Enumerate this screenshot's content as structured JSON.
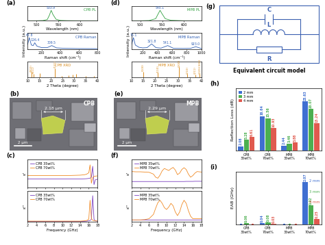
{
  "chart_data": [
    {
      "type": "line",
      "title": "(a)",
      "x": [
        480,
        500,
        515,
        525,
        530,
        533.9,
        538,
        545,
        555,
        570,
        600,
        640
      ],
      "series": [
        {
          "name": "CPB PL",
          "color": "#2e9e3e",
          "values": [
            0.01,
            0.01,
            0.03,
            0.12,
            0.55,
            1.0,
            0.6,
            0.15,
            0.04,
            0.02,
            0.01,
            0.01
          ]
        }
      ],
      "xlabel": "Wavelength (nm)",
      "xlim": [
        480,
        640
      ],
      "xticks": [
        500,
        550,
        600
      ],
      "ylim": [
        0,
        1.4
      ],
      "tick_labels": "x",
      "annotations": [
        {
          "text": "533.9",
          "x": 533.9,
          "y": 1.0
        }
      ]
    },
    {
      "type": "line",
      "x": [
        50,
        67.8,
        90,
        110,
        126.4,
        150,
        200,
        260,
        309.5,
        360,
        450,
        600,
        800
      ],
      "series": [
        {
          "name": "CPB Raman",
          "color": "#2f5fb3",
          "values": [
            0.4,
            1.0,
            0.35,
            0.3,
            0.55,
            0.25,
            0.12,
            0.12,
            0.3,
            0.1,
            0.06,
            0.04,
            0.03
          ]
        }
      ],
      "xlabel": "Raman shift (cm⁻¹)",
      "ylabel": "Intensity (a.u.)",
      "xlim": [
        50,
        800
      ],
      "xticks": [
        200,
        400,
        600,
        800
      ],
      "ylim": [
        0,
        1.4
      ],
      "tick_labels": "x",
      "annotations": [
        {
          "text": "67.8",
          "x": 67.8,
          "y": 1.0
        },
        {
          "text": "126.4",
          "x": 126.4,
          "y": 0.55
        },
        {
          "text": "309.5",
          "x": 309.5,
          "y": 0.3
        }
      ]
    },
    {
      "type": "stem",
      "x": [
        11.6,
        12.5,
        15.3,
        21.8,
        24.6,
        27.5,
        29.2,
        30.7,
        34.8,
        38.5
      ],
      "series": [
        {
          "name": "CPB XRD",
          "color": "#d98c1f",
          "values": [
            0.5,
            0.35,
            0.4,
            0.9,
            0.15,
            0.2,
            0.25,
            0.3,
            0.15,
            0.12
          ],
          "labels": [
            "(002)",
            "(011)",
            null,
            "(121)",
            null,
            null,
            null,
            null,
            null,
            null
          ]
        }
      ],
      "xlabel": "2 Theta (degree)",
      "xlim": [
        10,
        40
      ],
      "xticks": [
        10,
        15,
        20,
        25,
        30,
        35,
        40
      ],
      "ylim": [
        0,
        1.6
      ],
      "tick_labels": "x"
    },
    {
      "type": "line",
      "title": "(c)",
      "x": [
        2,
        3,
        4,
        5,
        6,
        7,
        8,
        9,
        10,
        11,
        12,
        13,
        14,
        15,
        15.5,
        16,
        16.3,
        16.6,
        16.9,
        17.2,
        17.5,
        18
      ],
      "series": [
        {
          "name": "CPB 35wt%",
          "color": "#7b3fbf",
          "values": [
            3.0,
            3.0,
            3.0,
            3.0,
            3.0,
            3.0,
            3.0,
            3.0,
            3.0,
            3.0,
            3.0,
            3.0,
            3.0,
            3.05,
            3.1,
            3.2,
            3.3,
            3.6,
            7.5,
            1.0,
            2.7,
            2.9
          ]
        },
        {
          "name": "CPB 70wt%",
          "color": "#f08a24",
          "values": [
            4.2,
            4.2,
            4.2,
            4.2,
            4.2,
            4.2,
            4.2,
            4.2,
            4.2,
            4.2,
            4.25,
            4.3,
            4.35,
            4.5,
            4.7,
            5.2,
            8.0,
            1.5,
            3.5,
            3.9,
            4.0,
            4.1
          ]
        }
      ],
      "ylabel": "ε'",
      "xlim": [
        2,
        18
      ],
      "xticks": [
        2,
        4,
        6,
        8,
        10,
        12,
        14,
        16,
        18
      ],
      "ylim": [
        0,
        10
      ],
      "tick_labels": false,
      "legend": "upper left"
    },
    {
      "type": "line",
      "x": [
        2,
        3,
        4,
        5,
        6,
        7,
        8,
        9,
        10,
        11,
        12,
        13,
        14,
        15,
        15.5,
        16,
        16.3,
        16.6,
        16.9,
        17.2,
        17.5,
        18
      ],
      "series": [
        {
          "name": "CPB 35wt%",
          "color": "#7b3fbf",
          "values": [
            0.1,
            0.1,
            0.1,
            0.1,
            0.1,
            0.1,
            0.1,
            0.1,
            0.1,
            0.1,
            0.1,
            0.1,
            0.1,
            0.15,
            0.2,
            0.3,
            0.4,
            0.8,
            8.5,
            0.8,
            0.3,
            0.2
          ]
        },
        {
          "name": "CPB 70wt%",
          "color": "#f08a24",
          "values": [
            0.2,
            0.2,
            0.2,
            0.2,
            0.2,
            0.2,
            0.2,
            0.2,
            0.2,
            0.2,
            0.2,
            0.2,
            0.2,
            0.3,
            0.4,
            0.8,
            7.0,
            1.0,
            0.5,
            0.3,
            0.3,
            0.25
          ]
        }
      ],
      "ylabel": "ε''",
      "xlabel": "Frequency (GHz)",
      "xlim": [
        2,
        18
      ],
      "xticks": [
        2,
        4,
        6,
        8,
        10,
        12,
        14,
        16,
        18
      ],
      "ylim": [
        0,
        10
      ],
      "tick_labels": "x",
      "legend": "upper left"
    },
    {
      "type": "line",
      "title": "(d)",
      "x": [
        480,
        500,
        520,
        535,
        540,
        545.1,
        550,
        557,
        570,
        600,
        640
      ],
      "series": [
        {
          "name": "MPB PL",
          "color": "#2e9e3e",
          "values": [
            0.01,
            0.01,
            0.03,
            0.2,
            0.6,
            1.0,
            0.65,
            0.2,
            0.05,
            0.01,
            0.01
          ]
        }
      ],
      "xlabel": "Wavelength (nm)",
      "xlim": [
        480,
        640
      ],
      "xticks": [
        500,
        550,
        600
      ],
      "ylim": [
        0,
        1.4
      ],
      "tick_labels": "x",
      "annotations": [
        {
          "text": "545.1",
          "x": 545.1,
          "y": 1.0
        }
      ]
    },
    {
      "type": "line",
      "x": [
        50,
        75.1,
        100,
        150,
        200,
        260,
        321.8,
        380,
        450,
        541.1,
        620,
        750,
        850,
        923.0,
        1000
      ],
      "series": [
        {
          "name": "MPB Raman",
          "color": "#2f5fb3",
          "values": [
            0.4,
            1.0,
            0.35,
            0.15,
            0.1,
            0.12,
            0.45,
            0.12,
            0.08,
            0.3,
            0.06,
            0.05,
            0.06,
            0.2,
            0.04
          ]
        }
      ],
      "xlabel": "Raman shift (cm⁻¹)",
      "ylabel": "Intensity (a.u.)",
      "xlim": [
        50,
        1000
      ],
      "xticks": [
        200,
        400,
        600,
        800,
        1000
      ],
      "ylim": [
        0,
        1.4
      ],
      "tick_labels": "x",
      "annotations": [
        {
          "text": "75.1",
          "x": 75.1,
          "y": 1.0
        },
        {
          "text": "321.8",
          "x": 321.8,
          "y": 0.45
        },
        {
          "text": "541.1",
          "x": 541.1,
          "y": 0.3
        },
        {
          "text": "923.0",
          "x": 923.0,
          "y": 0.2
        }
      ]
    },
    {
      "type": "stem",
      "x": [
        15.0,
        21.3,
        30.4,
        33.9,
        37.3,
        39.2
      ],
      "series": [
        {
          "name": "MPB XRD",
          "color": "#d98c1f",
          "values": [
            0.55,
            0.45,
            1.0,
            0.3,
            0.25,
            0.3
          ],
          "labels": [
            "(100)",
            "(110)",
            "(200)",
            "(210)",
            "(211)",
            "(220)(300)"
          ]
        }
      ],
      "xlabel": "2 Theta (degree)",
      "xlim": [
        10,
        40
      ],
      "xticks": [
        10,
        15,
        20,
        25,
        30,
        35,
        40
      ],
      "ylim": [
        0,
        1.6
      ],
      "tick_labels": "x"
    },
    {
      "type": "line",
      "title": "(f)",
      "x": [
        2,
        3,
        4,
        5,
        6,
        7,
        7.5,
        8,
        8.5,
        9,
        9.5,
        10,
        10.5,
        11,
        11.5,
        12,
        12.5,
        13,
        13.5,
        14,
        14.5,
        15,
        15.5,
        16,
        16.5,
        17,
        17.5,
        18
      ],
      "series": [
        {
          "name": "MPB 35wt%",
          "color": "#7b3fbf",
          "values": [
            2.3,
            2.3,
            2.3,
            2.3,
            2.3,
            2.3,
            2.3,
            2.3,
            2.3,
            2.3,
            2.3,
            2.3,
            2.3,
            2.3,
            2.3,
            2.3,
            2.3,
            2.3,
            2.3,
            2.3,
            2.35,
            2.35,
            2.35,
            2.35,
            2.4,
            2.4,
            2.4,
            2.4
          ]
        },
        {
          "name": "MPB 70wt%",
          "color": "#f08a24",
          "values": [
            6.2,
            6.1,
            6.1,
            6.0,
            5.9,
            5.2,
            4.0,
            3.6,
            4.8,
            6.5,
            7.4,
            7.0,
            6.6,
            7.3,
            7.8,
            6.8,
            5.0,
            5.6,
            7.0,
            7.7,
            7.0,
            5.2,
            4.0,
            4.6,
            5.6,
            6.2,
            6.1,
            6.0
          ]
        }
      ],
      "ylabel": "ε'",
      "xlim": [
        2,
        18
      ],
      "xticks": [
        2,
        4,
        6,
        8,
        10,
        12,
        14,
        16,
        18
      ],
      "ylim": [
        0,
        11
      ],
      "tick_labels": false,
      "legend": "upper left"
    },
    {
      "type": "line",
      "x": [
        2,
        3,
        4,
        5,
        6,
        7,
        7.5,
        8,
        8.5,
        9,
        9.5,
        10,
        10.5,
        11,
        11.5,
        12,
        12.5,
        13,
        13.5,
        14,
        14.5,
        15,
        15.5,
        16,
        16.5,
        17,
        17.5,
        18
      ],
      "series": [
        {
          "name": "MPB 35wt%",
          "color": "#7b3fbf",
          "values": [
            0.3,
            0.3,
            0.3,
            0.3,
            0.3,
            0.3,
            0.3,
            0.3,
            0.3,
            0.3,
            0.3,
            0.3,
            0.3,
            0.3,
            0.3,
            0.3,
            0.3,
            0.3,
            0.3,
            0.3,
            0.3,
            0.3,
            0.3,
            0.3,
            0.3,
            0.3,
            0.3,
            0.3
          ]
        },
        {
          "name": "MPB 70wt%",
          "color": "#f08a24",
          "values": [
            0.3,
            0.3,
            0.3,
            0.35,
            0.5,
            1.2,
            2.2,
            3.1,
            3.5,
            3.0,
            2.3,
            2.0,
            2.4,
            3.0,
            2.6,
            1.6,
            1.0,
            1.6,
            2.8,
            3.5,
            3.0,
            1.8,
            0.9,
            0.5,
            0.5,
            0.5,
            0.5,
            0.5
          ]
        }
      ],
      "ylabel": "ε''",
      "xlabel": "Frequency (GHz)",
      "xlim": [
        2,
        18
      ],
      "xticks": [
        2,
        4,
        6,
        8,
        10,
        12,
        14,
        16,
        18
      ],
      "ylim": [
        0,
        5
      ],
      "tick_labels": "x",
      "legend": "upper left"
    },
    {
      "type": "bar",
      "title": "(h)",
      "categories": [
        "CPB\n35wt%",
        "CPB\n70wt%",
        "MPB\n35wt%",
        "MPB\n70wt%"
      ],
      "series": [
        {
          "name": "2 mm",
          "color": "#3f6fd1",
          "values": [
            2.08,
            16.64,
            2.44,
            23.63
          ]
        },
        {
          "name": "3 mm",
          "color": "#4caf50",
          "values": [
            5.28,
            15.56,
            3.46,
            20.07
          ]
        },
        {
          "name": "4 mm",
          "color": "#e05a4f",
          "values": [
            6.61,
            10.93,
            3.88,
            13.24
          ]
        }
      ],
      "ylabel": "Reflection Loss (dB)",
      "ylim": [
        0,
        30
      ],
      "tick_labels": "x",
      "data_labels": true,
      "legend": "upper left"
    },
    {
      "type": "bar",
      "title": "(i)",
      "categories": [
        "CPB\n35wt%",
        "CPB\n70wt%",
        "MPB\n35wt%",
        "MPB\n70wt%"
      ],
      "series": [
        {
          "name": "2 mm",
          "color": "#3f6fd1",
          "values": [
            0,
            0.04,
            0,
            2.07
          ],
          "value_labels": [
            null,
            "0.04",
            null,
            "2.07"
          ]
        },
        {
          "name": "3 mm",
          "color": "#4caf50",
          "values": [
            0.06,
            0.08,
            0,
            0.92
          ],
          "value_labels": [
            "0.06",
            "0.08",
            null,
            "0.92"
          ]
        },
        {
          "name": "4 mm",
          "color": "#e05a4f",
          "values": [
            0,
            0.03,
            0,
            0.25
          ],
          "value_labels": [
            null,
            "0.03",
            null,
            "0.25"
          ]
        }
      ],
      "ylabel": "EAB (GHz)",
      "ylim": [
        0,
        2.6
      ],
      "tick_labels": "x",
      "data_labels": true
    }
  ],
  "images": [
    {
      "title": "(b)",
      "name": "CPB",
      "size": "2.18 μm",
      "scale_bar": "2 μm"
    },
    {
      "title": "(e)",
      "name": "MPB",
      "size": "2.29 μm",
      "scale_bar": "2 μm"
    }
  ],
  "diagram": {
    "title": "(g)",
    "caption": "Equivalent circuit model",
    "components": [
      "C",
      "L",
      "R"
    ]
  }
}
